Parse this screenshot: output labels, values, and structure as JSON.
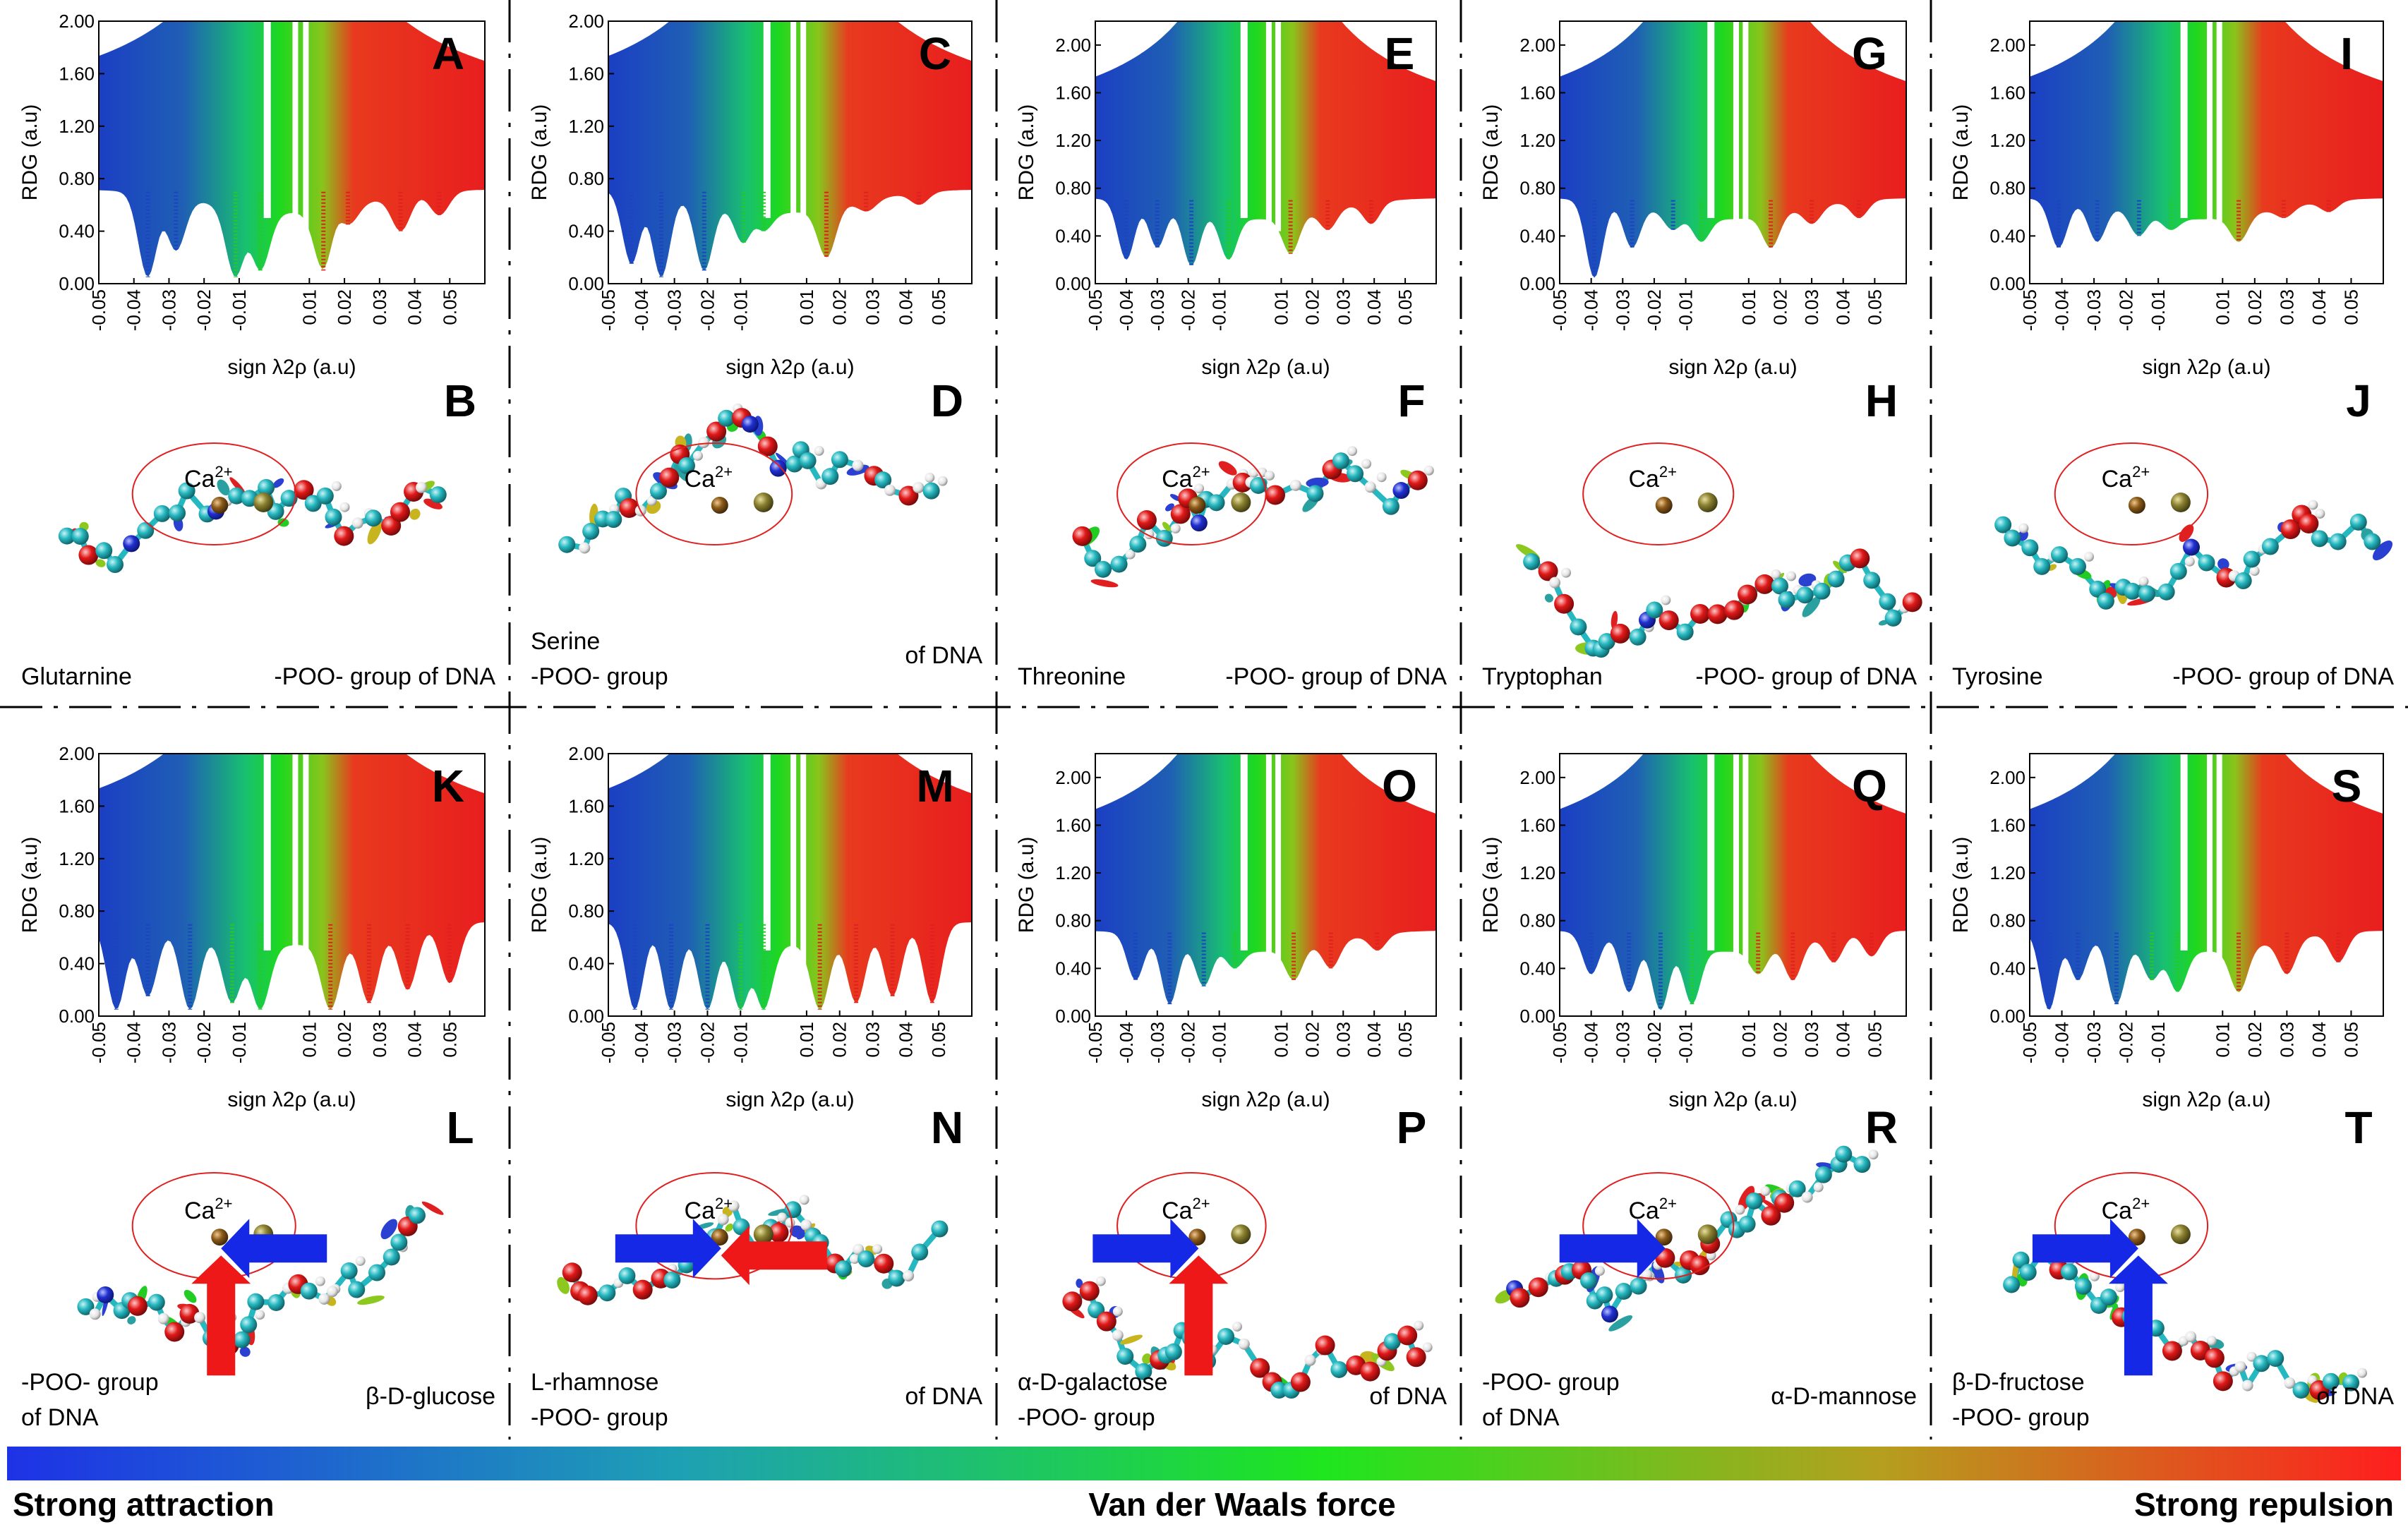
{
  "colors": {
    "attraction": "#1f3fd8",
    "vdw": "#22dd22",
    "repulsion": "#ee2222",
    "ellipse": "#e02020",
    "carbon": "#26b8c0",
    "oxygen": "#e01818",
    "hydrogen": "#e8e8e8",
    "phosphorus": "#8a8030",
    "calcium": "#8a5a18",
    "nitrogen": "#2030d0"
  },
  "chart_data": [
    {
      "panel": "A",
      "type": "scatter",
      "xlabel": "sign λ2ρ (a.u)",
      "ylabel": "RDG (a.u)",
      "xlim": [
        -0.05,
        0.06
      ],
      "ylim": [
        0,
        2.0
      ],
      "xticks": [
        "-0.05",
        "-0.04",
        "-0.03",
        "-0.02",
        "-0.01",
        "0.01",
        "0.02",
        "0.03",
        "0.04",
        "0.05"
      ],
      "yticks": [
        "0.00",
        "0.40",
        "0.80",
        "1.20",
        "1.60",
        "2.00"
      ],
      "spikes": [
        {
          "x": -0.036,
          "rdg": 0.05
        },
        {
          "x": -0.028,
          "rdg": 0.25
        },
        {
          "x": -0.011,
          "rdg": 0.05
        },
        {
          "x": -0.004,
          "rdg": 0.1
        },
        {
          "x": 0.014,
          "rdg": 0.1
        },
        {
          "x": 0.021,
          "rdg": 0.45
        },
        {
          "x": 0.036,
          "rdg": 0.4
        },
        {
          "x": 0.047,
          "rdg": 0.52
        }
      ]
    },
    {
      "panel": "C",
      "type": "scatter",
      "xlabel": "sign λ2ρ (a.u)",
      "ylabel": "RDG (a.u)",
      "xlim": [
        -0.05,
        0.06
      ],
      "ylim": [
        0,
        2.0
      ],
      "xticks": [
        "-0.05",
        "-0.04",
        "-0.03",
        "-0.02",
        "-0.01",
        "0.01",
        "0.02",
        "0.03",
        "0.04",
        "0.05"
      ],
      "yticks": [
        "0.00",
        "0.40",
        "0.80",
        "1.20",
        "1.60",
        "2.00"
      ],
      "spikes": [
        {
          "x": -0.043,
          "rdg": 0.15
        },
        {
          "x": -0.034,
          "rdg": 0.05
        },
        {
          "x": -0.021,
          "rdg": 0.1
        },
        {
          "x": -0.009,
          "rdg": 0.3
        },
        {
          "x": -0.003,
          "rdg": 0.4
        },
        {
          "x": 0.016,
          "rdg": 0.2
        },
        {
          "x": 0.028,
          "rdg": 0.55
        },
        {
          "x": 0.044,
          "rdg": 0.6
        }
      ]
    },
    {
      "panel": "E",
      "type": "scatter",
      "xlabel": "sign λ2ρ (a.u)",
      "ylabel": "RDG (a.u)",
      "xlim": [
        -0.05,
        0.06
      ],
      "ylim": [
        0,
        2.2
      ],
      "xticks": [
        "-0.05",
        "-0.04",
        "-0.03",
        "-0.02",
        "-0.01",
        "0.01",
        "0.02",
        "0.03",
        "0.04",
        "0.05"
      ],
      "yticks": [
        "0.00",
        "0.40",
        "0.80",
        "1.20",
        "1.60",
        "2.00"
      ],
      "spikes": [
        {
          "x": -0.04,
          "rdg": 0.2
        },
        {
          "x": -0.03,
          "rdg": 0.3
        },
        {
          "x": -0.019,
          "rdg": 0.15
        },
        {
          "x": -0.007,
          "rdg": 0.2
        },
        {
          "x": 0.013,
          "rdg": 0.25
        },
        {
          "x": 0.025,
          "rdg": 0.45
        },
        {
          "x": 0.039,
          "rdg": 0.5
        }
      ]
    },
    {
      "panel": "G",
      "type": "scatter",
      "xlabel": "sign λ2ρ (a.u)",
      "ylabel": "RDG (a.u)",
      "xlim": [
        -0.05,
        0.06
      ],
      "ylim": [
        0,
        2.2
      ],
      "xticks": [
        "-0.05",
        "-0.04",
        "-0.03",
        "-0.02",
        "-0.01",
        "0.01",
        "0.02",
        "0.03",
        "0.04",
        "0.05"
      ],
      "yticks": [
        "0.00",
        "0.40",
        "0.80",
        "1.20",
        "1.60",
        "2.00"
      ],
      "spikes": [
        {
          "x": -0.039,
          "rdg": 0.05
        },
        {
          "x": -0.027,
          "rdg": 0.3
        },
        {
          "x": -0.014,
          "rdg": 0.45
        },
        {
          "x": -0.005,
          "rdg": 0.35
        },
        {
          "x": 0.017,
          "rdg": 0.3
        },
        {
          "x": 0.03,
          "rdg": 0.5
        },
        {
          "x": 0.045,
          "rdg": 0.55
        }
      ]
    },
    {
      "panel": "I",
      "type": "scatter",
      "xlabel": "sign λ2ρ (a.u)",
      "ylabel": "RDG (a.u)",
      "xlim": [
        -0.05,
        0.06
      ],
      "ylim": [
        0,
        2.2
      ],
      "xticks": [
        "-0.05",
        "-0.04",
        "-0.03",
        "-0.02",
        "-0.01",
        "0.01",
        "0.02",
        "0.03",
        "0.04",
        "0.05"
      ],
      "yticks": [
        "0.00",
        "0.40",
        "0.80",
        "1.20",
        "1.60",
        "2.00"
      ],
      "spikes": [
        {
          "x": -0.041,
          "rdg": 0.3
        },
        {
          "x": -0.029,
          "rdg": 0.35
        },
        {
          "x": -0.016,
          "rdg": 0.4
        },
        {
          "x": -0.006,
          "rdg": 0.45
        },
        {
          "x": 0.015,
          "rdg": 0.35
        },
        {
          "x": 0.029,
          "rdg": 0.55
        },
        {
          "x": 0.043,
          "rdg": 0.6
        }
      ]
    },
    {
      "panel": "K",
      "type": "scatter",
      "xlabel": "sign λ2ρ (a.u)",
      "ylabel": "RDG (a.u)",
      "xlim": [
        -0.05,
        0.06
      ],
      "ylim": [
        0,
        2.0
      ],
      "xticks": [
        "-0.05",
        "-0.04",
        "-0.03",
        "-0.02",
        "-0.01",
        "0.01",
        "0.02",
        "0.03",
        "0.04",
        "0.05"
      ],
      "yticks": [
        "0.00",
        "0.40",
        "0.80",
        "1.20",
        "1.60",
        "2.00"
      ],
      "spikes": [
        {
          "x": -0.045,
          "rdg": 0.05
        },
        {
          "x": -0.036,
          "rdg": 0.15
        },
        {
          "x": -0.024,
          "rdg": 0.05
        },
        {
          "x": -0.012,
          "rdg": 0.1
        },
        {
          "x": -0.004,
          "rdg": 0.05
        },
        {
          "x": 0.016,
          "rdg": 0.05
        },
        {
          "x": 0.027,
          "rdg": 0.1
        },
        {
          "x": 0.038,
          "rdg": 0.2
        },
        {
          "x": 0.05,
          "rdg": 0.25
        }
      ]
    },
    {
      "panel": "M",
      "type": "scatter",
      "xlabel": "sign λ2ρ (a.u)",
      "ylabel": "RDG (a.u)",
      "xlim": [
        -0.05,
        0.06
      ],
      "ylim": [
        0,
        2.0
      ],
      "xticks": [
        "-0.05",
        "-0.04",
        "-0.03",
        "-0.02",
        "-0.01",
        "0.01",
        "0.02",
        "0.03",
        "0.04",
        "0.05"
      ],
      "yticks": [
        "0.00",
        "0.40",
        "0.80",
        "1.20",
        "1.60",
        "2.00"
      ],
      "spikes": [
        {
          "x": -0.042,
          "rdg": 0.05
        },
        {
          "x": -0.031,
          "rdg": 0.05
        },
        {
          "x": -0.02,
          "rdg": 0.05
        },
        {
          "x": -0.01,
          "rdg": 0.05
        },
        {
          "x": -0.003,
          "rdg": 0.05
        },
        {
          "x": 0.014,
          "rdg": 0.05
        },
        {
          "x": 0.025,
          "rdg": 0.1
        },
        {
          "x": 0.036,
          "rdg": 0.15
        },
        {
          "x": 0.048,
          "rdg": 0.1
        }
      ]
    },
    {
      "panel": "O",
      "type": "scatter",
      "xlabel": "sign λ2ρ (a.u)",
      "ylabel": "RDG (a.u)",
      "xlim": [
        -0.05,
        0.06
      ],
      "ylim": [
        0,
        2.2
      ],
      "xticks": [
        "-0.05",
        "-0.04",
        "-0.03",
        "-0.02",
        "-0.01",
        "0.01",
        "0.02",
        "0.03",
        "0.04",
        "0.05"
      ],
      "yticks": [
        "0.00",
        "0.40",
        "0.80",
        "1.20",
        "1.60",
        "2.00"
      ],
      "spikes": [
        {
          "x": -0.037,
          "rdg": 0.3
        },
        {
          "x": -0.026,
          "rdg": 0.1
        },
        {
          "x": -0.015,
          "rdg": 0.25
        },
        {
          "x": -0.005,
          "rdg": 0.4
        },
        {
          "x": 0.014,
          "rdg": 0.3
        },
        {
          "x": 0.026,
          "rdg": 0.4
        },
        {
          "x": 0.041,
          "rdg": 0.55
        }
      ]
    },
    {
      "panel": "Q",
      "type": "scatter",
      "xlabel": "sign λ2ρ (a.u)",
      "ylabel": "RDG (a.u)",
      "xlim": [
        -0.05,
        0.06
      ],
      "ylim": [
        0,
        2.2
      ],
      "xticks": [
        "-0.05",
        "-0.04",
        "-0.03",
        "-0.02",
        "-0.01",
        "0.01",
        "0.02",
        "0.03",
        "0.04",
        "0.05"
      ],
      "yticks": [
        "0.00",
        "0.40",
        "0.80",
        "1.20",
        "1.60",
        "2.00"
      ],
      "spikes": [
        {
          "x": -0.04,
          "rdg": 0.35
        },
        {
          "x": -0.028,
          "rdg": 0.2
        },
        {
          "x": -0.018,
          "rdg": 0.05
        },
        {
          "x": -0.008,
          "rdg": 0.1
        },
        {
          "x": 0.013,
          "rdg": 0.35
        },
        {
          "x": 0.024,
          "rdg": 0.3
        },
        {
          "x": 0.037,
          "rdg": 0.45
        },
        {
          "x": 0.049,
          "rdg": 0.5
        }
      ]
    },
    {
      "panel": "S",
      "type": "scatter",
      "xlabel": "sign λ2ρ (a.u)",
      "ylabel": "RDG (a.u)",
      "xlim": [
        -0.05,
        0.06
      ],
      "ylim": [
        0,
        2.2
      ],
      "xticks": [
        "-0.05",
        "-0.04",
        "-0.03",
        "-0.02",
        "-0.01",
        "0.01",
        "0.02",
        "0.03",
        "0.04",
        "0.05"
      ],
      "yticks": [
        "0.00",
        "0.40",
        "0.80",
        "1.20",
        "1.60",
        "2.00"
      ],
      "spikes": [
        {
          "x": -0.044,
          "rdg": 0.05
        },
        {
          "x": -0.035,
          "rdg": 0.3
        },
        {
          "x": -0.023,
          "rdg": 0.1
        },
        {
          "x": -0.012,
          "rdg": 0.3
        },
        {
          "x": -0.004,
          "rdg": 0.2
        },
        {
          "x": 0.015,
          "rdg": 0.2
        },
        {
          "x": 0.03,
          "rdg": 0.35
        },
        {
          "x": 0.046,
          "rdg": 0.45
        }
      ]
    }
  ],
  "structures": [
    {
      "panel": "B",
      "labels": [
        "Glutarnine",
        "-POO- group of DNA"
      ],
      "ion": "Ca2+",
      "arrows": []
    },
    {
      "panel": "D",
      "labels": [
        "Serine",
        "-POO- group",
        "of DNA"
      ],
      "ion": "Ca2+",
      "arrows": []
    },
    {
      "panel": "F",
      "labels": [
        "Threonine",
        "-POO- group of DNA"
      ],
      "ion": "Ca2+",
      "arrows": []
    },
    {
      "panel": "H",
      "labels": [
        "Tryptophan",
        "-POO- group of DNA"
      ],
      "ion": "Ca2+",
      "arrows": []
    },
    {
      "panel": "J",
      "labels": [
        "Tyrosine",
        "-POO- group of DNA"
      ],
      "ion": "Ca2+",
      "arrows": []
    },
    {
      "panel": "L",
      "labels": [
        "-POO- group",
        "of DNA",
        "β-D-glucose"
      ],
      "ion": "Ca2+",
      "arrows": [
        "blue-left",
        "red-up"
      ]
    },
    {
      "panel": "N",
      "labels": [
        "L-rhamnose",
        "-POO- group",
        "of DNA"
      ],
      "ion": "Ca2+",
      "arrows": [
        "blue-right",
        "red-left"
      ]
    },
    {
      "panel": "P",
      "labels": [
        "α-D-galactose",
        "-POO- group",
        "of DNA"
      ],
      "ion": "Ca2+",
      "arrows": [
        "blue-right",
        "red-up"
      ]
    },
    {
      "panel": "R",
      "labels": [
        "-POO- group",
        "of DNA",
        "α-D-mannose"
      ],
      "ion": "Ca2+",
      "arrows": [
        "blue-right"
      ]
    },
    {
      "panel": "T",
      "labels": [
        "β-D-fructose",
        "-POO- group",
        "of DNA"
      ],
      "ion": "Ca2+",
      "arrows": [
        "blue-right",
        "blue-up"
      ]
    }
  ],
  "colorbar": {
    "left_label": "Strong attraction",
    "middle_label": "Van der Waals force",
    "right_label": "Strong repulsion"
  }
}
